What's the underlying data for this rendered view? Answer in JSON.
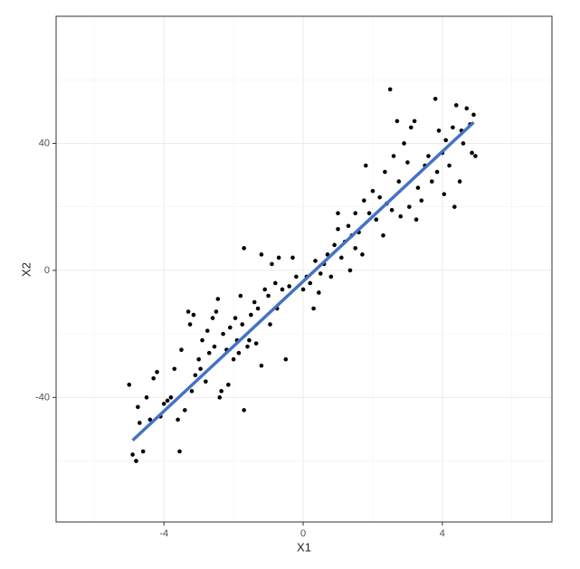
{
  "chart_data": {
    "type": "scatter",
    "x_label": "X1",
    "y_label": "X2",
    "x": [
      -5,
      -4.9,
      -4.8,
      -4.75,
      -4.7,
      -4.6,
      -4.5,
      -4.4,
      -4.3,
      -4.2,
      -4.1,
      -4.0,
      -3.9,
      -3.8,
      -3.7,
      -3.6,
      -3.55,
      -3.5,
      -3.4,
      -3.3,
      -3.25,
      -3.2,
      -3.15,
      -3.1,
      -3.0,
      -2.95,
      -2.9,
      -2.8,
      -2.75,
      -2.7,
      -2.6,
      -2.55,
      -2.5,
      -2.45,
      -2.4,
      -2.35,
      -2.3,
      -2.2,
      -2.15,
      -2.1,
      -2.0,
      -1.95,
      -1.9,
      -1.85,
      -1.8,
      -1.75,
      -1.7,
      -1.7,
      -1.6,
      -1.55,
      -1.5,
      -1.4,
      -1.35,
      -1.3,
      -1.2,
      -1.2,
      -1.1,
      -1.0,
      -0.95,
      -0.9,
      -0.8,
      -0.75,
      -0.7,
      -0.6,
      -0.5,
      -0.4,
      -0.3,
      -0.2,
      0,
      0.1,
      0.2,
      0.3,
      0.35,
      0.45,
      0.5,
      0.6,
      0.7,
      0.8,
      0.9,
      1.0,
      1.0,
      1.1,
      1.2,
      1.3,
      1.35,
      1.4,
      1.5,
      1.5,
      1.6,
      1.7,
      1.75,
      1.8,
      1.9,
      2.0,
      2.1,
      2.2,
      2.3,
      2.35,
      2.4,
      2.5,
      2.55,
      2.6,
      2.7,
      2.75,
      2.8,
      2.9,
      3.0,
      3.05,
      3.1,
      3.2,
      3.25,
      3.3,
      3.4,
      3.5,
      3.6,
      3.7,
      3.8,
      3.85,
      3.9,
      4.0,
      4.05,
      4.1,
      4.2,
      4.3,
      4.35,
      4.4,
      4.5,
      4.55,
      4.6,
      4.7,
      4.8,
      4.85,
      4.9,
      4.95
    ],
    "values": [
      -36,
      -58,
      -60,
      -43,
      -48,
      -57,
      -40,
      -47,
      -34,
      -32,
      -46,
      -42,
      -41,
      -40,
      -31,
      -47,
      -57,
      -25,
      -44,
      -13,
      -17,
      -38,
      -14,
      -33,
      -28,
      -31,
      -22,
      -35,
      -19,
      -26,
      -15,
      -24,
      -13,
      -9,
      -40,
      -38,
      -20,
      -25,
      -36,
      -18,
      -28,
      -15,
      -22,
      -26,
      -8,
      -17,
      -44,
      7,
      -24,
      -22,
      -14,
      -10,
      -23,
      -12,
      -30,
      5,
      -6,
      -8,
      -17,
      2,
      -4,
      -12,
      4,
      -6,
      -28,
      -5,
      4,
      -2,
      -6,
      -2,
      -4,
      -12,
      3,
      -7,
      -1,
      2,
      5,
      -2,
      8,
      13,
      18,
      4,
      9,
      14,
      0,
      11,
      7,
      18,
      12,
      5,
      22,
      33,
      18,
      25,
      16,
      23,
      11,
      31,
      21,
      57,
      19,
      36,
      47,
      28,
      17,
      40,
      34,
      20,
      45,
      47,
      16,
      26,
      22,
      33,
      36,
      28,
      54,
      31,
      44,
      37,
      24,
      41,
      33,
      45,
      20,
      52,
      28,
      44,
      40,
      51,
      46,
      37,
      49,
      36
    ],
    "color": "#000000",
    "fit_line": {
      "x": [
        -4.9,
        4.9
      ],
      "values": [
        -53.5,
        46.6
      ],
      "color": "#4472c4"
    },
    "xlim": [
      -7.1,
      7.15
    ],
    "ylim": [
      -79.2,
      80
    ],
    "xticks": [
      -4,
      0,
      4
    ],
    "yticks": [
      -40,
      0,
      40
    ],
    "x_minor_ticks": [
      -6,
      -2,
      2,
      6
    ],
    "y_minor_ticks": [
      -60,
      -20,
      20,
      60
    ],
    "grid": true
  }
}
